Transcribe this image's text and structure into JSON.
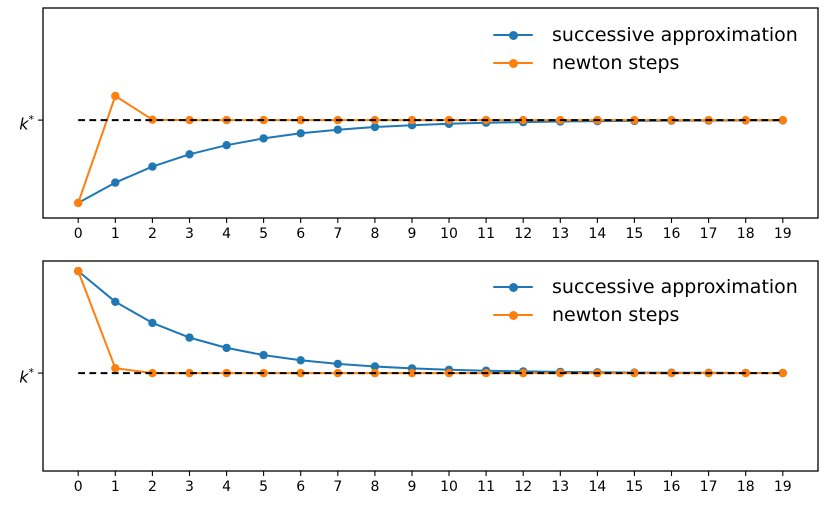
{
  "figure": {
    "background": "#ffffff",
    "frame_color": "#000000"
  },
  "y_axis": {
    "tick_label_base": "k",
    "tick_label_sup": "*"
  },
  "legend": {
    "position": "upper right",
    "frame": false,
    "items": [
      {
        "label": "successive approximation",
        "color": "#1f77b4"
      },
      {
        "label": "newton steps",
        "color": "#ff7f0e"
      }
    ]
  },
  "chart_data": [
    {
      "type": "line",
      "subplot": "top",
      "initial_value": 0.8,
      "x": [
        0,
        1,
        2,
        3,
        4,
        5,
        6,
        7,
        8,
        9,
        10,
        11,
        12,
        13,
        14,
        15,
        16,
        17,
        18,
        19
      ],
      "x_tick_labels": [
        "0",
        "1",
        "2",
        "3",
        "4",
        "5",
        "6",
        "7",
        "8",
        "9",
        "10",
        "11",
        "12",
        "13",
        "14",
        "15",
        "16",
        "17",
        "18",
        "19"
      ],
      "series": [
        {
          "name": "successive approximation",
          "color": "#1f77b4",
          "values": [
            0.8,
            1.041,
            1.232,
            1.378,
            1.487,
            1.568,
            1.628,
            1.671,
            1.703,
            1.725,
            1.742,
            1.754,
            1.762,
            1.769,
            1.773,
            1.776,
            1.779,
            1.78,
            1.782,
            1.782
          ]
        },
        {
          "name": "newton steps",
          "color": "#ff7f0e",
          "values": [
            0.8,
            2.072,
            1.79,
            1.785,
            1.785,
            1.785,
            1.785,
            1.785,
            1.785,
            1.785,
            1.785,
            1.785,
            1.785,
            1.785,
            1.785,
            1.785,
            1.785,
            1.785,
            1.785,
            1.785
          ]
        }
      ],
      "reference_line": {
        "label": "k*",
        "value": 1.785,
        "style": "dashed",
        "color": "#000000"
      },
      "y_tick": {
        "value": 1.785,
        "label": "k*"
      },
      "xlim": [
        -0.95,
        19.95
      ],
      "ylim": [
        0.62,
        3.12
      ],
      "grid": false,
      "legend_position": "upper right"
    },
    {
      "type": "line",
      "subplot": "bottom",
      "initial_value": 3.0,
      "x": [
        0,
        1,
        2,
        3,
        4,
        5,
        6,
        7,
        8,
        9,
        10,
        11,
        12,
        13,
        14,
        15,
        16,
        17,
        18,
        19
      ],
      "x_tick_labels": [
        "0",
        "1",
        "2",
        "3",
        "4",
        "5",
        "6",
        "7",
        "8",
        "9",
        "10",
        "11",
        "12",
        "13",
        "14",
        "15",
        "16",
        "17",
        "18",
        "19"
      ],
      "series": [
        {
          "name": "successive approximation",
          "color": "#1f77b4",
          "values": [
            3.0,
            2.634,
            2.383,
            2.208,
            2.086,
            2.0,
            1.938,
            1.895,
            1.864,
            1.841,
            1.825,
            1.814,
            1.806,
            1.8,
            1.795,
            1.792,
            1.79,
            1.789,
            1.787,
            1.787
          ]
        },
        {
          "name": "newton steps",
          "color": "#ff7f0e",
          "values": [
            3.0,
            1.844,
            1.785,
            1.785,
            1.785,
            1.785,
            1.785,
            1.785,
            1.785,
            1.785,
            1.785,
            1.785,
            1.785,
            1.785,
            1.785,
            1.785,
            1.785,
            1.785,
            1.785,
            1.785
          ]
        }
      ],
      "reference_line": {
        "label": "k*",
        "value": 1.785,
        "style": "dashed",
        "color": "#000000"
      },
      "y_tick": {
        "value": 1.785,
        "label": "k*"
      },
      "xlim": [
        -0.95,
        19.95
      ],
      "ylim": [
        0.62,
        3.12
      ],
      "grid": false,
      "legend_position": "upper right"
    }
  ]
}
